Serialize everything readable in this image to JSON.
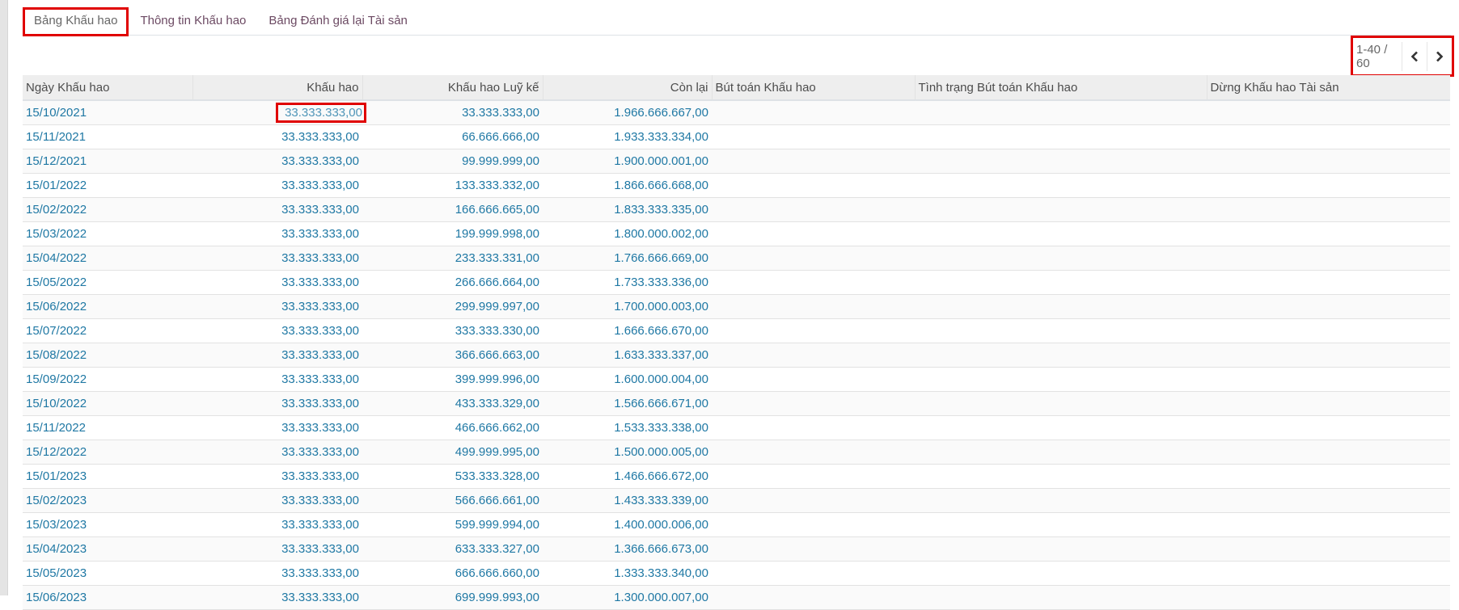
{
  "tabs": [
    {
      "label": "Bảng Khấu hao",
      "active": true
    },
    {
      "label": "Thông tin Khấu hao",
      "active": false
    },
    {
      "label": "Bảng Đánh giá lại Tài sản",
      "active": false
    }
  ],
  "pager": {
    "text": "1-40 / 60",
    "prev_icon": "chevron-left-icon",
    "next_icon": "chevron-right-icon"
  },
  "columns": [
    "Ngày Khấu hao",
    "Khấu hao",
    "Khấu hao Luỹ kế",
    "Còn lại",
    "Bút toán Khấu hao",
    "Tình trạng Bút toán Khấu hao",
    "Dừng Khấu hao Tài sản"
  ],
  "rows": [
    [
      "15/10/2021",
      "33.333.333,00",
      "33.333.333,00",
      "1.966.666.667,00"
    ],
    [
      "15/11/2021",
      "33.333.333,00",
      "66.666.666,00",
      "1.933.333.334,00"
    ],
    [
      "15/12/2021",
      "33.333.333,00",
      "99.999.999,00",
      "1.900.000.001,00"
    ],
    [
      "15/01/2022",
      "33.333.333,00",
      "133.333.332,00",
      "1.866.666.668,00"
    ],
    [
      "15/02/2022",
      "33.333.333,00",
      "166.666.665,00",
      "1.833.333.335,00"
    ],
    [
      "15/03/2022",
      "33.333.333,00",
      "199.999.998,00",
      "1.800.000.002,00"
    ],
    [
      "15/04/2022",
      "33.333.333,00",
      "233.333.331,00",
      "1.766.666.669,00"
    ],
    [
      "15/05/2022",
      "33.333.333,00",
      "266.666.664,00",
      "1.733.333.336,00"
    ],
    [
      "15/06/2022",
      "33.333.333,00",
      "299.999.997,00",
      "1.700.000.003,00"
    ],
    [
      "15/07/2022",
      "33.333.333,00",
      "333.333.330,00",
      "1.666.666.670,00"
    ],
    [
      "15/08/2022",
      "33.333.333,00",
      "366.666.663,00",
      "1.633.333.337,00"
    ],
    [
      "15/09/2022",
      "33.333.333,00",
      "399.999.996,00",
      "1.600.000.004,00"
    ],
    [
      "15/10/2022",
      "33.333.333,00",
      "433.333.329,00",
      "1.566.666.671,00"
    ],
    [
      "15/11/2022",
      "33.333.333,00",
      "466.666.662,00",
      "1.533.333.338,00"
    ],
    [
      "15/12/2022",
      "33.333.333,00",
      "499.999.995,00",
      "1.500.000.005,00"
    ],
    [
      "15/01/2023",
      "33.333.333,00",
      "533.333.328,00",
      "1.466.666.672,00"
    ],
    [
      "15/02/2023",
      "33.333.333,00",
      "566.666.661,00",
      "1.433.333.339,00"
    ],
    [
      "15/03/2023",
      "33.333.333,00",
      "599.999.994,00",
      "1.400.000.006,00"
    ],
    [
      "15/04/2023",
      "33.333.333,00",
      "633.333.327,00",
      "1.366.666.673,00"
    ],
    [
      "15/05/2023",
      "33.333.333,00",
      "666.666.660,00",
      "1.333.333.340,00"
    ],
    [
      "15/06/2023",
      "33.333.333,00",
      "699.999.993,00",
      "1.300.000.007,00"
    ]
  ]
}
